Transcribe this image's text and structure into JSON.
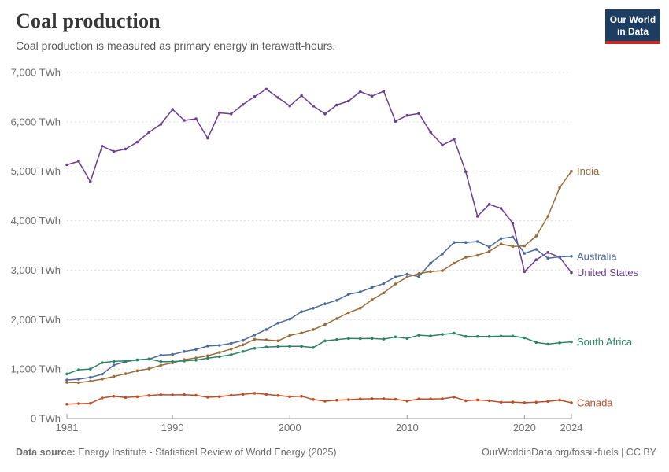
{
  "header": {
    "title": "Coal production",
    "subtitle": "Coal production is measured as primary energy in terawatt-hours."
  },
  "logo": {
    "line1": "Our World",
    "line2": "in Data",
    "bg_color": "#1d3d63",
    "accent_color": "#c52721"
  },
  "footer": {
    "source_label": "Data source:",
    "source_text": " Energy Institute - Statistical Review of World Energy (2025)",
    "link_text": "OurWorldinData.org/fossil-fuels | CC BY"
  },
  "chart_data": {
    "type": "line",
    "title": "Coal production",
    "unit": "TWh",
    "grid": "horizontal-dashed",
    "legend_position": "line-end-labels-right",
    "ylim": [
      0,
      7000
    ],
    "y_ticks": [
      0,
      1000,
      2000,
      3000,
      4000,
      5000,
      6000,
      7000
    ],
    "y_tick_labels": [
      "0 TWh",
      "1,000 TWh",
      "2,000 TWh",
      "3,000 TWh",
      "4,000 TWh",
      "5,000 TWh",
      "6,000 TWh",
      "7,000 TWh"
    ],
    "xlim": [
      1981,
      2024
    ],
    "x_ticks": [
      1981,
      1990,
      2000,
      2010,
      2020,
      2024
    ],
    "x_tick_labels": [
      "1981",
      "1990",
      "2000",
      "2010",
      "2020",
      "2024"
    ],
    "x": [
      1981,
      1982,
      1983,
      1984,
      1985,
      1986,
      1987,
      1988,
      1989,
      1990,
      1991,
      1992,
      1993,
      1994,
      1995,
      1996,
      1997,
      1998,
      1999,
      2000,
      2001,
      2002,
      2003,
      2004,
      2005,
      2006,
      2007,
      2008,
      2009,
      2010,
      2011,
      2012,
      2013,
      2014,
      2015,
      2016,
      2017,
      2018,
      2019,
      2020,
      2021,
      2022,
      2023,
      2024
    ],
    "axis_color": "#999999",
    "grid_color": "#dcdcdc",
    "tick_label_color": "#6e6e6e",
    "series": [
      {
        "name": "United States",
        "color": "#6D3E91",
        "values": [
          5130,
          5200,
          4790,
          5510,
          5400,
          5450,
          5590,
          5790,
          5950,
          6250,
          6030,
          6060,
          5670,
          6180,
          6160,
          6350,
          6510,
          6660,
          6490,
          6320,
          6530,
          6320,
          6160,
          6340,
          6420,
          6610,
          6520,
          6620,
          6010,
          6130,
          6170,
          5790,
          5530,
          5650,
          4990,
          4090,
          4330,
          4250,
          3950,
          2970,
          3210,
          3360,
          3260,
          2950
        ]
      },
      {
        "name": "Australia",
        "color": "#4C6A9C",
        "values": [
          780,
          795,
          830,
          895,
          1080,
          1150,
          1185,
          1200,
          1280,
          1295,
          1355,
          1395,
          1465,
          1480,
          1520,
          1580,
          1690,
          1800,
          1930,
          2010,
          2160,
          2230,
          2320,
          2390,
          2510,
          2560,
          2650,
          2730,
          2860,
          2920,
          2870,
          3140,
          3330,
          3560,
          3560,
          3580,
          3470,
          3640,
          3670,
          3340,
          3420,
          3240,
          3270,
          3280
        ]
      },
      {
        "name": "India",
        "color": "#996D39",
        "values": [
          730,
          725,
          755,
          795,
          850,
          905,
          965,
          1005,
          1075,
          1125,
          1190,
          1225,
          1270,
          1335,
          1405,
          1490,
          1600,
          1590,
          1570,
          1680,
          1730,
          1800,
          1900,
          2020,
          2140,
          2230,
          2400,
          2540,
          2720,
          2860,
          2930,
          2970,
          2990,
          3140,
          3260,
          3300,
          3380,
          3530,
          3480,
          3490,
          3690,
          4090,
          4670,
          5000
        ]
      },
      {
        "name": "South Africa",
        "color": "#2C8465",
        "values": [
          900,
          985,
          1000,
          1130,
          1155,
          1165,
          1185,
          1205,
          1150,
          1150,
          1165,
          1180,
          1220,
          1250,
          1290,
          1355,
          1420,
          1445,
          1455,
          1460,
          1460,
          1435,
          1570,
          1595,
          1620,
          1615,
          1620,
          1605,
          1650,
          1620,
          1685,
          1670,
          1700,
          1725,
          1660,
          1660,
          1660,
          1665,
          1665,
          1630,
          1540,
          1505,
          1530,
          1550
        ]
      },
      {
        "name": "Canada",
        "color": "#BE4E27",
        "values": [
          290,
          300,
          305,
          415,
          450,
          425,
          440,
          465,
          480,
          478,
          480,
          470,
          430,
          440,
          470,
          490,
          510,
          490,
          465,
          440,
          450,
          385,
          350,
          370,
          380,
          395,
          400,
          400,
          388,
          355,
          395,
          395,
          400,
          435,
          360,
          375,
          360,
          330,
          332,
          320,
          330,
          345,
          372,
          320
        ]
      }
    ]
  }
}
